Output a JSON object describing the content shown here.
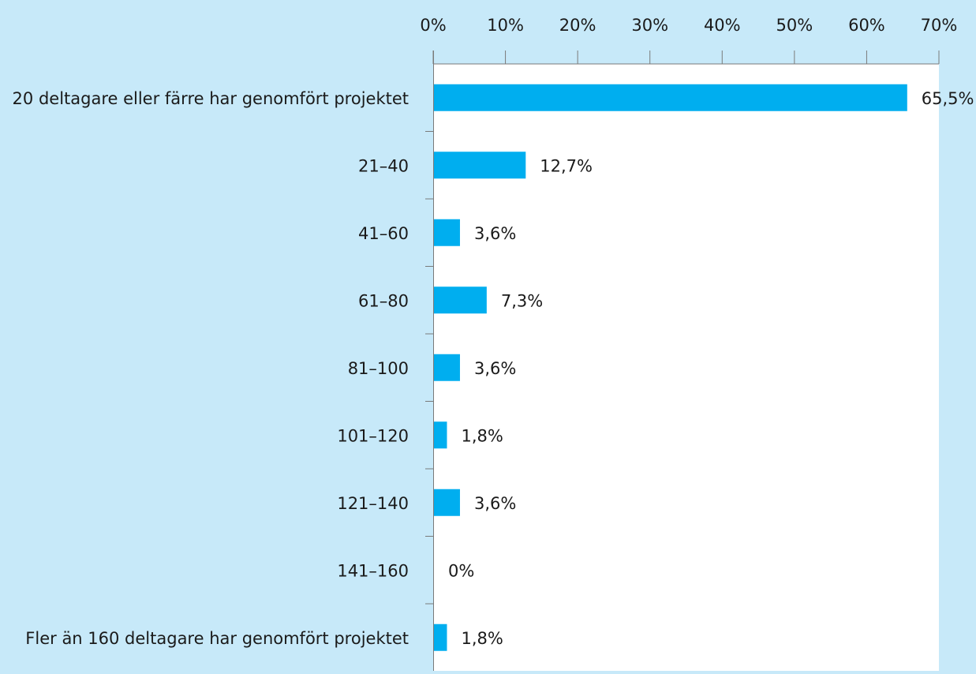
{
  "colors": {
    "background": "#c7e9f9",
    "plot_area": "#ffffff",
    "bar": "#00aeef",
    "axis": "#7a7a7a",
    "text": "#1a1a1a"
  },
  "chart_data": {
    "type": "bar",
    "orientation": "horizontal",
    "title": "",
    "xlabel": "",
    "ylabel": "",
    "xlim": [
      0,
      70
    ],
    "x_axis_position": "top",
    "grid": false,
    "x_ticks": [
      "0%",
      "10%",
      "20%",
      "30%",
      "40%",
      "50%",
      "60%",
      "70%"
    ],
    "categories": [
      "20 deltagare eller färre har genomfört projektet",
      "21–40",
      "41–60",
      "61–80",
      "81–100",
      "101–120",
      "121–140",
      "141–160",
      "Fler än 160 deltagare har genomfört projektet"
    ],
    "values": [
      65.5,
      12.7,
      3.6,
      7.3,
      3.6,
      1.8,
      3.6,
      0,
      1.8
    ],
    "value_labels": [
      "65,5%",
      "12,7%",
      "3,6%",
      "7,3%",
      "3,6%",
      "1,8%",
      "3,6%",
      "0%",
      "1,8%"
    ]
  }
}
